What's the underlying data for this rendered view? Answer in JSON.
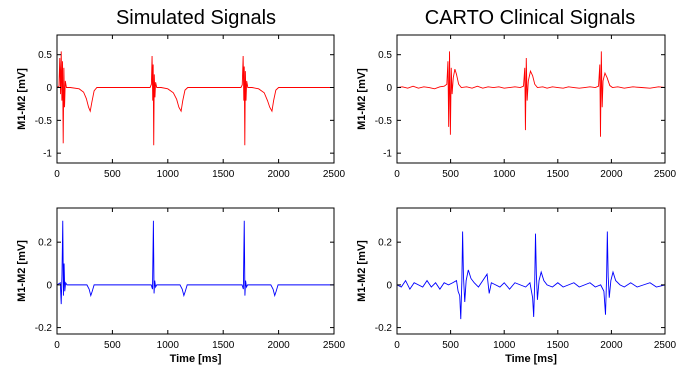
{
  "titles": {
    "left": "Simulated Signals",
    "right": "CARTO Clinical Signals"
  },
  "chart_data": [
    {
      "id": "sim-top",
      "type": "line",
      "title": "Simulated Signals",
      "xlabel": "",
      "ylabel": "M1-M2 [mV]",
      "xlim": [
        0,
        2500
      ],
      "ylim": [
        -1.15,
        0.8
      ],
      "xticks": [
        0,
        500,
        1000,
        1500,
        2000,
        2500
      ],
      "yticks": [
        -1,
        -0.5,
        0,
        0.5
      ],
      "ytick_labels": [
        "-1",
        "-0.5",
        "0",
        "0.5"
      ],
      "grid": false,
      "series": [
        {
          "color": "#ff0000",
          "points": [
            [
              0,
              0
            ],
            [
              18,
              0.02
            ],
            [
              25,
              0.45
            ],
            [
              32,
              -0.1
            ],
            [
              38,
              0.55
            ],
            [
              44,
              -0.2
            ],
            [
              50,
              0.4
            ],
            [
              56,
              -0.85
            ],
            [
              62,
              0.3
            ],
            [
              68,
              -0.3
            ],
            [
              75,
              0.1
            ],
            [
              85,
              0
            ],
            [
              120,
              0
            ],
            [
              200,
              -0.02
            ],
            [
              240,
              -0.07
            ],
            [
              265,
              -0.17
            ],
            [
              285,
              -0.3
            ],
            [
              300,
              -0.36
            ],
            [
              315,
              -0.22
            ],
            [
              335,
              -0.05
            ],
            [
              360,
              0
            ],
            [
              840,
              0
            ],
            [
              852,
              0.05
            ],
            [
              858,
              0.48
            ],
            [
              864,
              -0.2
            ],
            [
              868,
              0.35
            ],
            [
              873,
              -0.88
            ],
            [
              878,
              0.2
            ],
            [
              884,
              -0.15
            ],
            [
              890,
              0.08
            ],
            [
              900,
              0
            ],
            [
              940,
              0
            ],
            [
              1000,
              -0.02
            ],
            [
              1050,
              -0.08
            ],
            [
              1080,
              -0.18
            ],
            [
              1100,
              -0.3
            ],
            [
              1120,
              -0.36
            ],
            [
              1135,
              -0.2
            ],
            [
              1155,
              -0.04
            ],
            [
              1180,
              0
            ],
            [
              1660,
              0
            ],
            [
              1672,
              0.04
            ],
            [
              1680,
              0.48
            ],
            [
              1686,
              -0.2
            ],
            [
              1690,
              0.32
            ],
            [
              1695,
              -0.88
            ],
            [
              1700,
              0.25
            ],
            [
              1706,
              -0.2
            ],
            [
              1712,
              0.1
            ],
            [
              1722,
              0
            ],
            [
              1760,
              0
            ],
            [
              1820,
              -0.02
            ],
            [
              1870,
              -0.08
            ],
            [
              1900,
              -0.2
            ],
            [
              1920,
              -0.3
            ],
            [
              1940,
              -0.36
            ],
            [
              1955,
              -0.2
            ],
            [
              1975,
              -0.04
            ],
            [
              2000,
              0
            ],
            [
              2500,
              0
            ]
          ]
        }
      ]
    },
    {
      "id": "carto-top",
      "type": "line",
      "title": "CARTO Clinical Signals",
      "xlabel": "",
      "ylabel": "M1-M2 [mV]",
      "xlim": [
        0,
        2500
      ],
      "ylim": [
        -1.15,
        0.8
      ],
      "xticks": [
        0,
        500,
        1000,
        1500,
        2000,
        2500
      ],
      "yticks": [
        -1,
        -0.5,
        0,
        0.5
      ],
      "ytick_labels": [
        "-1",
        "-0.5",
        "0",
        "0.5"
      ],
      "grid": false,
      "series": [
        {
          "color": "#ff0000",
          "points": [
            [
              0,
              0
            ],
            [
              50,
              0.01
            ],
            [
              100,
              -0.01
            ],
            [
              150,
              0.02
            ],
            [
              200,
              -0.01
            ],
            [
              250,
              0.01
            ],
            [
              300,
              0
            ],
            [
              350,
              -0.02
            ],
            [
              400,
              0.01
            ],
            [
              440,
              0.02
            ],
            [
              465,
              0.05
            ],
            [
              475,
              0.4
            ],
            [
              482,
              -0.6
            ],
            [
              490,
              0.55
            ],
            [
              498,
              -0.72
            ],
            [
              506,
              0.3
            ],
            [
              514,
              -0.1
            ],
            [
              525,
              0.15
            ],
            [
              540,
              0.28
            ],
            [
              555,
              0.2
            ],
            [
              575,
              0.05
            ],
            [
              600,
              0
            ],
            [
              650,
              0.01
            ],
            [
              700,
              -0.01
            ],
            [
              750,
              0.02
            ],
            [
              800,
              -0.01
            ],
            [
              850,
              0.01
            ],
            [
              900,
              0
            ],
            [
              950,
              0.01
            ],
            [
              1000,
              -0.01
            ],
            [
              1050,
              0
            ],
            [
              1100,
              0.01
            ],
            [
              1150,
              0
            ],
            [
              1180,
              0.02
            ],
            [
              1192,
              0.3
            ],
            [
              1198,
              -0.65
            ],
            [
              1206,
              0.45
            ],
            [
              1214,
              -0.2
            ],
            [
              1225,
              0.1
            ],
            [
              1245,
              0.25
            ],
            [
              1265,
              0.18
            ],
            [
              1285,
              0.05
            ],
            [
              1310,
              0
            ],
            [
              1360,
              0.01
            ],
            [
              1400,
              -0.01
            ],
            [
              1450,
              0.01
            ],
            [
              1500,
              0
            ],
            [
              1550,
              -0.01
            ],
            [
              1600,
              0.01
            ],
            [
              1650,
              0
            ],
            [
              1700,
              -0.01
            ],
            [
              1750,
              0
            ],
            [
              1800,
              0.01
            ],
            [
              1850,
              0
            ],
            [
              1880,
              0.02
            ],
            [
              1892,
              0.35
            ],
            [
              1898,
              -0.75
            ],
            [
              1906,
              0.55
            ],
            [
              1914,
              -0.3
            ],
            [
              1922,
              0.1
            ],
            [
              1940,
              0.22
            ],
            [
              1960,
              0.15
            ],
            [
              1985,
              0.03
            ],
            [
              2010,
              0
            ],
            [
              2060,
              0.01
            ],
            [
              2120,
              -0.01
            ],
            [
              2200,
              0.01
            ],
            [
              2280,
              0
            ],
            [
              2360,
              -0.01
            ],
            [
              2440,
              0.01
            ],
            [
              2500,
              0
            ]
          ]
        }
      ]
    },
    {
      "id": "sim-bottom",
      "type": "line",
      "title": "",
      "xlabel": "Time [ms]",
      "ylabel": "M1-M2 [mV]",
      "xlim": [
        0,
        2500
      ],
      "ylim": [
        -0.23,
        0.36
      ],
      "xticks": [
        0,
        500,
        1000,
        1500,
        2000,
        2500
      ],
      "yticks": [
        -0.2,
        0,
        0.2
      ],
      "ytick_labels": [
        "-0.2",
        "0",
        "0.2"
      ],
      "grid": false,
      "series": [
        {
          "color": "#0000ff",
          "points": [
            [
              0,
              0
            ],
            [
              30,
              0.01
            ],
            [
              38,
              -0.09
            ],
            [
              45,
              0.05
            ],
            [
              52,
              0.3
            ],
            [
              58,
              -0.05
            ],
            [
              64,
              0.1
            ],
            [
              70,
              -0.03
            ],
            [
              78,
              0.01
            ],
            [
              90,
              0
            ],
            [
              270,
              0
            ],
            [
              290,
              -0.02
            ],
            [
              305,
              -0.05
            ],
            [
              318,
              -0.03
            ],
            [
              335,
              0
            ],
            [
              850,
              0
            ],
            [
              862,
              -0.02
            ],
            [
              870,
              0.3
            ],
            [
              876,
              -0.04
            ],
            [
              882,
              0.02
            ],
            [
              890,
              -0.01
            ],
            [
              900,
              0
            ],
            [
              1110,
              0
            ],
            [
              1130,
              -0.02
            ],
            [
              1145,
              -0.05
            ],
            [
              1158,
              -0.03
            ],
            [
              1175,
              0
            ],
            [
              1670,
              0
            ],
            [
              1682,
              -0.02
            ],
            [
              1690,
              0.3
            ],
            [
              1696,
              -0.05
            ],
            [
              1702,
              0.02
            ],
            [
              1710,
              -0.01
            ],
            [
              1720,
              0
            ],
            [
              1930,
              0
            ],
            [
              1950,
              -0.02
            ],
            [
              1965,
              -0.05
            ],
            [
              1978,
              -0.03
            ],
            [
              1995,
              0
            ],
            [
              2500,
              0
            ]
          ]
        }
      ]
    },
    {
      "id": "carto-bottom",
      "type": "line",
      "title": "",
      "xlabel": "Time [ms]",
      "ylabel": "M1-M2 [mV]",
      "xlim": [
        0,
        2500
      ],
      "ylim": [
        -0.23,
        0.36
      ],
      "xticks": [
        0,
        500,
        1000,
        1500,
        2000,
        2500
      ],
      "yticks": [
        -0.2,
        0,
        0.2
      ],
      "ytick_labels": [
        "-0.2",
        "0",
        "0.2"
      ],
      "grid": false,
      "series": [
        {
          "color": "#0000ff",
          "points": [
            [
              0,
              0
            ],
            [
              40,
              -0.01
            ],
            [
              80,
              0.02
            ],
            [
              120,
              -0.02
            ],
            [
              160,
              0.01
            ],
            [
              200,
              0
            ],
            [
              240,
              -0.01
            ],
            [
              280,
              0.02
            ],
            [
              320,
              -0.01
            ],
            [
              360,
              0.01
            ],
            [
              400,
              -0.02
            ],
            [
              440,
              0.01
            ],
            [
              480,
              0
            ],
            [
              520,
              0.01
            ],
            [
              555,
              0.02
            ],
            [
              570,
              -0.03
            ],
            [
              585,
              -0.05
            ],
            [
              595,
              -0.16
            ],
            [
              605,
              0.02
            ],
            [
              612,
              0.25
            ],
            [
              620,
              0.04
            ],
            [
              632,
              -0.08
            ],
            [
              645,
              0.02
            ],
            [
              665,
              0.07
            ],
            [
              690,
              0.03
            ],
            [
              720,
              0.01
            ],
            [
              760,
              -0.01
            ],
            [
              800,
              0.02
            ],
            [
              840,
              0.05
            ],
            [
              860,
              -0.04
            ],
            [
              880,
              0.01
            ],
            [
              920,
              0
            ],
            [
              960,
              -0.01
            ],
            [
              1000,
              0.01
            ],
            [
              1050,
              -0.02
            ],
            [
              1100,
              0.01
            ],
            [
              1150,
              0
            ],
            [
              1200,
              -0.01
            ],
            [
              1240,
              0.01
            ],
            [
              1265,
              -0.06
            ],
            [
              1275,
              -0.15
            ],
            [
              1285,
              0.02
            ],
            [
              1292,
              0.24
            ],
            [
              1300,
              0.05
            ],
            [
              1310,
              -0.07
            ],
            [
              1325,
              0.02
            ],
            [
              1345,
              0.06
            ],
            [
              1370,
              0.02
            ],
            [
              1400,
              0
            ],
            [
              1450,
              -0.01
            ],
            [
              1500,
              0.01
            ],
            [
              1550,
              -0.01
            ],
            [
              1600,
              0
            ],
            [
              1650,
              0.01
            ],
            [
              1700,
              -0.01
            ],
            [
              1750,
              0
            ],
            [
              1800,
              0.01
            ],
            [
              1850,
              -0.01
            ],
            [
              1900,
              0
            ],
            [
              1930,
              -0.03
            ],
            [
              1945,
              -0.14
            ],
            [
              1955,
              0.03
            ],
            [
              1962,
              0.25
            ],
            [
              1970,
              0.04
            ],
            [
              1980,
              -0.06
            ],
            [
              1995,
              0.02
            ],
            [
              2015,
              0.06
            ],
            [
              2040,
              0.02
            ],
            [
              2080,
              0
            ],
            [
              2120,
              -0.01
            ],
            [
              2180,
              0.01
            ],
            [
              2240,
              -0.01
            ],
            [
              2300,
              0
            ],
            [
              2360,
              0.01
            ],
            [
              2420,
              -0.01
            ],
            [
              2500,
              0
            ]
          ]
        }
      ]
    }
  ]
}
